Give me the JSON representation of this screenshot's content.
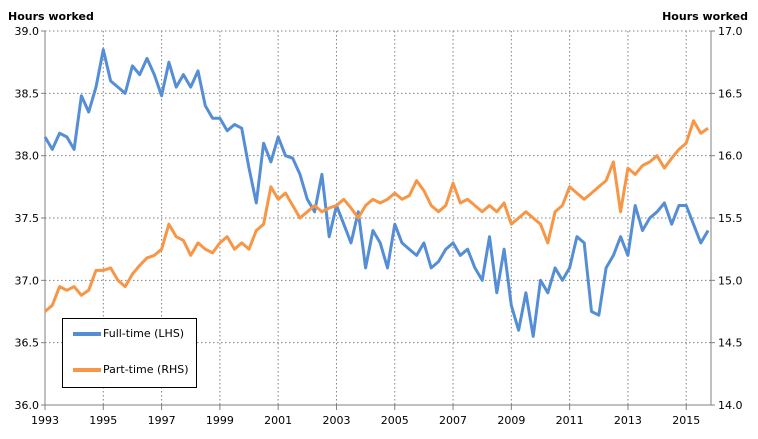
{
  "chart_data": {
    "type": "line",
    "title": "",
    "ylabel_left": "Hours worked",
    "ylabel_right": "Hours worked",
    "ylim_left": [
      36.0,
      39.0
    ],
    "ylim_right": [
      14.0,
      17.0
    ],
    "yticks_left": [
      "36.0",
      "36.5",
      "37.0",
      "37.5",
      "38.0",
      "38.5",
      "39.0"
    ],
    "yticks_right": [
      "14.0",
      "14.5",
      "15.0",
      "15.5",
      "16.0",
      "16.5",
      "17.0"
    ],
    "xticks": [
      "1993",
      "1995",
      "1997",
      "1999",
      "2001",
      "2003",
      "2005",
      "2007",
      "2009",
      "2011",
      "2013",
      "2015"
    ],
    "xlim": [
      1993,
      2015.85
    ],
    "grid": true,
    "legend_position": "bottom-left",
    "x_start": 1993,
    "x_step": 0.25,
    "series": [
      {
        "name": "Full-time (LHS)",
        "axis": "left",
        "color": "#558ED5",
        "values": [
          38.15,
          38.05,
          38.18,
          38.15,
          38.05,
          38.48,
          38.35,
          38.55,
          38.85,
          38.6,
          38.55,
          38.5,
          38.72,
          38.65,
          38.78,
          38.65,
          38.48,
          38.75,
          38.55,
          38.65,
          38.55,
          38.68,
          38.4,
          38.3,
          38.3,
          38.2,
          38.25,
          38.22,
          37.9,
          37.62,
          38.1,
          37.95,
          38.15,
          38.0,
          37.98,
          37.85,
          37.65,
          37.55,
          37.85,
          37.35,
          37.6,
          37.45,
          37.3,
          37.55,
          37.1,
          37.4,
          37.3,
          37.1,
          37.45,
          37.3,
          37.25,
          37.2,
          37.3,
          37.1,
          37.15,
          37.25,
          37.3,
          37.2,
          37.25,
          37.1,
          37.0,
          37.35,
          36.9,
          37.25,
          36.8,
          36.6,
          36.9,
          36.55,
          37.0,
          36.9,
          37.1,
          37.0,
          37.1,
          37.35,
          37.3,
          36.75,
          36.72,
          37.1,
          37.2,
          37.35,
          37.2,
          37.6,
          37.4,
          37.5,
          37.55,
          37.62,
          37.45,
          37.6,
          37.6,
          37.45,
          37.3,
          37.4
        ]
      },
      {
        "name": "Part-time (RHS)",
        "axis": "right",
        "color": "#F79646",
        "values": [
          14.75,
          14.8,
          14.95,
          14.92,
          14.95,
          14.88,
          14.92,
          15.08,
          15.08,
          15.1,
          15.0,
          14.95,
          15.05,
          15.12,
          15.18,
          15.2,
          15.25,
          15.45,
          15.35,
          15.32,
          15.2,
          15.3,
          15.25,
          15.22,
          15.3,
          15.35,
          15.25,
          15.3,
          15.25,
          15.4,
          15.45,
          15.75,
          15.65,
          15.7,
          15.6,
          15.5,
          15.55,
          15.6,
          15.55,
          15.58,
          15.6,
          15.65,
          15.58,
          15.5,
          15.6,
          15.65,
          15.62,
          15.65,
          15.7,
          15.65,
          15.68,
          15.8,
          15.72,
          15.6,
          15.55,
          15.6,
          15.78,
          15.62,
          15.65,
          15.6,
          15.55,
          15.6,
          15.55,
          15.62,
          15.45,
          15.5,
          15.55,
          15.5,
          15.45,
          15.3,
          15.55,
          15.6,
          15.75,
          15.7,
          15.65,
          15.7,
          15.75,
          15.8,
          15.95,
          15.55,
          15.9,
          15.85,
          15.92,
          15.95,
          16.0,
          15.9,
          15.98,
          16.05,
          16.1,
          16.28,
          16.18,
          16.22
        ]
      }
    ]
  }
}
